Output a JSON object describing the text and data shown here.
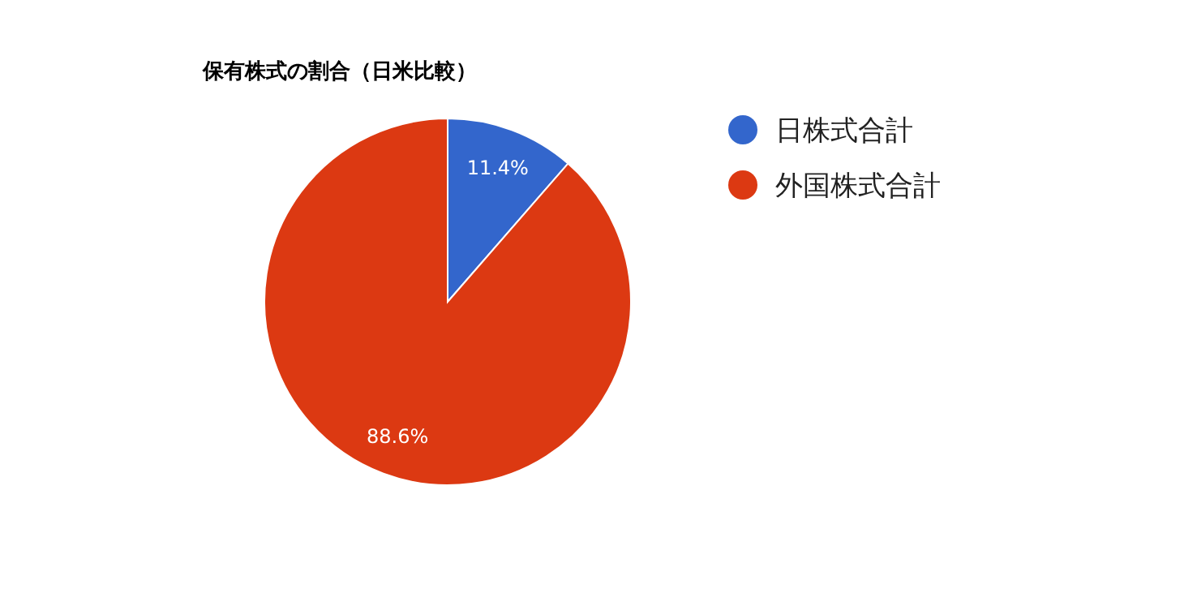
{
  "chart_data": {
    "type": "pie",
    "title": "保有株式の割合（日米比較）",
    "categories": [
      "日株式合計",
      "外国株式合計"
    ],
    "values": [
      11.4,
      88.6
    ],
    "colors": [
      "#3366cc",
      "#dc3912"
    ],
    "value_labels": [
      "11.4%",
      "88.6%"
    ],
    "legend": "right"
  }
}
